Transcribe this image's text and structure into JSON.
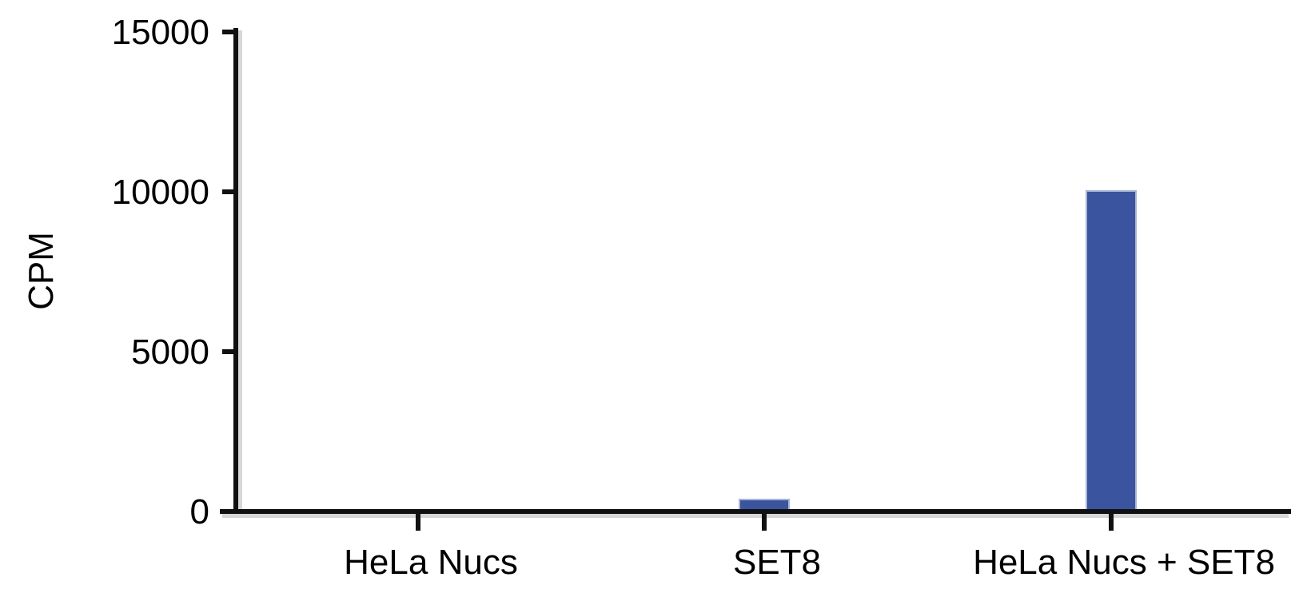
{
  "chart_data": {
    "type": "bar",
    "categories": [
      "HeLa Nucs",
      "SET8",
      "HeLa Nucs + SET8"
    ],
    "series": [
      {
        "values": [
          0,
          350,
          10000
        ]
      }
    ],
    "ylabel": "CPM",
    "xlabel": "",
    "title": "",
    "ylim": [
      0,
      15000
    ],
    "yticks": [
      0,
      5000,
      10000,
      15000
    ],
    "ytick_labels": [
      "0",
      "5000",
      "10000",
      "15000"
    ],
    "grid": false,
    "legend": "none",
    "bar_color": "#3a54a0"
  }
}
